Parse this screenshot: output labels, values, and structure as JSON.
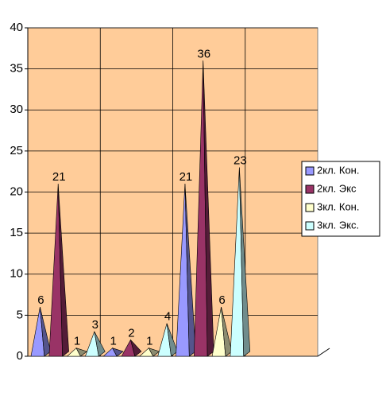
{
  "chart_data": {
    "type": "pyramid",
    "categories": [
      null,
      null,
      null,
      null
    ],
    "series": [
      {
        "name": "2кл. Кон.",
        "color": "#9999ff",
        "values": [
          6,
          1,
          21,
          null
        ]
      },
      {
        "name": "2кл. Экс",
        "color": "#993366",
        "values": [
          21,
          2,
          36,
          null
        ]
      },
      {
        "name": "3кл. Кон.",
        "color": "#ffffcc",
        "values": [
          1,
          1,
          6,
          null
        ]
      },
      {
        "name": "3кл. Экс.",
        "color": "#ccffff",
        "values": [
          3,
          4,
          23,
          null
        ]
      }
    ],
    "ylim": [
      0,
      40
    ],
    "yticks": [
      0,
      5,
      10,
      15,
      20,
      25,
      30,
      35,
      40
    ],
    "grid": true,
    "plot_color": "#ffcc99",
    "legend": "right"
  }
}
